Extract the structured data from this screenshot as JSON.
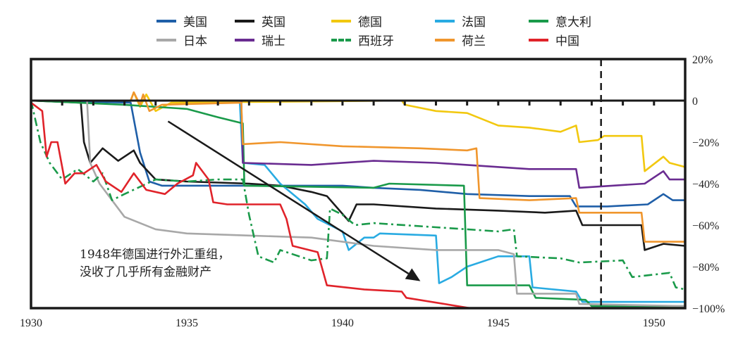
{
  "chart_data": {
    "type": "line",
    "title": "",
    "xlabel": "",
    "ylabel": "",
    "xlim": [
      1930,
      1951
    ],
    "ylim": [
      -100,
      20
    ],
    "x_ticks": [
      "1930",
      "1935",
      "1940",
      "1945",
      "1950"
    ],
    "x_tick_values": [
      1930,
      1935,
      1940,
      1945,
      1950
    ],
    "y_ticks": [
      "20%",
      "0",
      "−20%",
      "−40%",
      "−60%",
      "−80%",
      "−100%"
    ],
    "y_tick_values": [
      20,
      0,
      -20,
      -40,
      -60,
      -80,
      -100
    ],
    "y_axis_side": "right",
    "legend_placement": "top",
    "reference_line_year": 1948.3,
    "annotation": {
      "lines": [
        "1948年德国进行外汇重组，",
        "没收了几乎所有金融财产"
      ]
    },
    "arrow": {
      "from": [
        1934.4,
        -10
      ],
      "to": [
        1942.5,
        -87
      ]
    },
    "series": [
      {
        "name": "美国",
        "color": "#1f5fa8",
        "style": "solid",
        "points": [
          [
            1930,
            0
          ],
          [
            1933.2,
            -1
          ],
          [
            1933.5,
            -25
          ],
          [
            1933.8,
            -39
          ],
          [
            1934.2,
            -41
          ],
          [
            1940,
            -41
          ],
          [
            1941,
            -42
          ],
          [
            1942.5,
            -43
          ],
          [
            1944,
            -45
          ],
          [
            1946,
            -46
          ],
          [
            1947.3,
            -46
          ],
          [
            1947.5,
            -51
          ],
          [
            1948.5,
            -51
          ],
          [
            1949.8,
            -50
          ],
          [
            1950.3,
            -45
          ],
          [
            1950.6,
            -48
          ],
          [
            1951,
            -48
          ]
        ]
      },
      {
        "name": "英国",
        "color": "#1a1a1a",
        "style": "solid",
        "points": [
          [
            1930,
            0
          ],
          [
            1931.6,
            -1
          ],
          [
            1931.7,
            -20
          ],
          [
            1931.9,
            -30
          ],
          [
            1932.3,
            -23
          ],
          [
            1932.8,
            -29
          ],
          [
            1933.3,
            -24
          ],
          [
            1933.5,
            -30
          ],
          [
            1934,
            -38
          ],
          [
            1935,
            -39
          ],
          [
            1937,
            -40
          ],
          [
            1938,
            -41
          ],
          [
            1939,
            -44
          ],
          [
            1939.5,
            -46
          ],
          [
            1940.2,
            -58
          ],
          [
            1940.45,
            -50
          ],
          [
            1941,
            -50
          ],
          [
            1943,
            -52
          ],
          [
            1945,
            -53
          ],
          [
            1946.5,
            -54
          ],
          [
            1947.5,
            -53
          ],
          [
            1947.7,
            -60
          ],
          [
            1949.6,
            -60
          ],
          [
            1949.7,
            -72
          ],
          [
            1950.3,
            -69
          ],
          [
            1951,
            -70
          ]
        ]
      },
      {
        "name": "德国",
        "color": "#f2c80f",
        "style": "solid",
        "points": [
          [
            1930,
            0
          ],
          [
            1933.2,
            0
          ],
          [
            1933.3,
            4
          ],
          [
            1933.5,
            -3
          ],
          [
            1933.7,
            3
          ],
          [
            1934,
            -5
          ],
          [
            1934.5,
            -1
          ],
          [
            1941.9,
            0
          ],
          [
            1942,
            -2
          ],
          [
            1943,
            -5
          ],
          [
            1944,
            -6
          ],
          [
            1945,
            -12
          ],
          [
            1946,
            -13
          ],
          [
            1947,
            -15
          ],
          [
            1947.5,
            -12
          ],
          [
            1947.6,
            -20
          ],
          [
            1948.2,
            -19
          ],
          [
            1948.4,
            -17
          ],
          [
            1949.6,
            -17
          ],
          [
            1949.7,
            -34
          ],
          [
            1950.3,
            -27
          ],
          [
            1950.5,
            -30
          ],
          [
            1951,
            -32
          ]
        ]
      },
      {
        "name": "法国",
        "color": "#29abe2",
        "style": "solid",
        "points": [
          [
            1930,
            0
          ],
          [
            1936.7,
            0
          ],
          [
            1936.8,
            -30
          ],
          [
            1937.5,
            -31
          ],
          [
            1938,
            -40
          ],
          [
            1938.8,
            -50
          ],
          [
            1939.2,
            -57
          ],
          [
            1940,
            -63
          ],
          [
            1940.2,
            -72
          ],
          [
            1940.7,
            -66
          ],
          [
            1941,
            -66
          ],
          [
            1941.2,
            -64
          ],
          [
            1943,
            -65
          ],
          [
            1943.1,
            -88
          ],
          [
            1943.5,
            -85
          ],
          [
            1944,
            -80
          ],
          [
            1945,
            -75
          ],
          [
            1946,
            -75
          ],
          [
            1946.1,
            -90
          ],
          [
            1947.5,
            -92
          ],
          [
            1947.7,
            -97
          ],
          [
            1951,
            -97
          ]
        ]
      },
      {
        "name": "意大利",
        "color": "#1a9a4a",
        "style": "solid",
        "points": [
          [
            1930,
            0
          ],
          [
            1933,
            -2
          ],
          [
            1935,
            -4
          ],
          [
            1936,
            -8
          ],
          [
            1936.8,
            -11
          ],
          [
            1936.85,
            -41
          ],
          [
            1941,
            -42
          ],
          [
            1941.5,
            -40
          ],
          [
            1943.9,
            -41
          ],
          [
            1944,
            -89
          ],
          [
            1946,
            -89
          ],
          [
            1946.2,
            -95
          ],
          [
            1947.8,
            -96
          ],
          [
            1948,
            -99
          ],
          [
            1951,
            -99
          ]
        ]
      },
      {
        "name": "日本",
        "color": "#a8a8a8",
        "style": "solid",
        "points": [
          [
            1930,
            0
          ],
          [
            1931.8,
            0
          ],
          [
            1931.9,
            -30
          ],
          [
            1932.2,
            -40
          ],
          [
            1933,
            -56
          ],
          [
            1934,
            -62
          ],
          [
            1935,
            -64
          ],
          [
            1937,
            -65
          ],
          [
            1939,
            -66
          ],
          [
            1940,
            -68
          ],
          [
            1941,
            -70
          ],
          [
            1943,
            -72
          ],
          [
            1945,
            -72
          ],
          [
            1945.5,
            -74
          ],
          [
            1945.6,
            -93
          ],
          [
            1947.5,
            -93
          ],
          [
            1947.6,
            -98
          ],
          [
            1951,
            -99
          ]
        ]
      },
      {
        "name": "瑞士",
        "color": "#6a2c91",
        "style": "solid",
        "points": [
          [
            1930,
            0
          ],
          [
            1936.75,
            0
          ],
          [
            1936.8,
            -30
          ],
          [
            1939,
            -31
          ],
          [
            1941,
            -29
          ],
          [
            1943,
            -30
          ],
          [
            1944,
            -31
          ],
          [
            1946,
            -33
          ],
          [
            1947.5,
            -33
          ],
          [
            1947.6,
            -42
          ],
          [
            1949.7,
            -40
          ],
          [
            1950.3,
            -34
          ],
          [
            1950.5,
            -38
          ],
          [
            1951,
            -38
          ]
        ]
      },
      {
        "name": "西班牙",
        "color": "#1a9a4a",
        "style": "dashdot",
        "points": [
          [
            1930,
            0
          ],
          [
            1930.3,
            -20
          ],
          [
            1930.6,
            -30
          ],
          [
            1931,
            -38
          ],
          [
            1931.5,
            -33
          ],
          [
            1932,
            -39
          ],
          [
            1932.3,
            -35
          ],
          [
            1932.6,
            -48
          ],
          [
            1933,
            -45
          ],
          [
            1934,
            -38
          ],
          [
            1935,
            -39
          ],
          [
            1936,
            -38
          ],
          [
            1936.8,
            -38
          ],
          [
            1937,
            -55
          ],
          [
            1937.3,
            -75
          ],
          [
            1937.8,
            -78
          ],
          [
            1938,
            -72
          ],
          [
            1939,
            -77
          ],
          [
            1939.5,
            -76
          ],
          [
            1939.6,
            -52
          ],
          [
            1940,
            -55
          ],
          [
            1940.4,
            -60
          ],
          [
            1941,
            -59
          ],
          [
            1943,
            -61
          ],
          [
            1945,
            -63
          ],
          [
            1945.5,
            -62
          ],
          [
            1945.6,
            -75
          ],
          [
            1947,
            -76
          ],
          [
            1947.6,
            -78
          ],
          [
            1949,
            -77
          ],
          [
            1949.3,
            -85
          ],
          [
            1950.5,
            -83
          ],
          [
            1950.7,
            -90
          ],
          [
            1951,
            -91
          ]
        ]
      },
      {
        "name": "荷兰",
        "color": "#f0962d",
        "style": "solid",
        "points": [
          [
            1930,
            0
          ],
          [
            1933.2,
            0
          ],
          [
            1933.3,
            4
          ],
          [
            1933.5,
            -2
          ],
          [
            1933.6,
            3
          ],
          [
            1933.8,
            -5
          ],
          [
            1934.2,
            -2
          ],
          [
            1936.75,
            -1
          ],
          [
            1936.8,
            -21
          ],
          [
            1938,
            -20
          ],
          [
            1940,
            -22
          ],
          [
            1942.5,
            -23
          ],
          [
            1944,
            -24
          ],
          [
            1944.3,
            -23
          ],
          [
            1944.4,
            -47
          ],
          [
            1946,
            -48
          ],
          [
            1947.5,
            -47
          ],
          [
            1947.6,
            -54
          ],
          [
            1949.6,
            -54
          ],
          [
            1949.7,
            -68
          ],
          [
            1951,
            -68
          ]
        ]
      },
      {
        "name": "中国",
        "color": "#e0232a",
        "style": "solid",
        "points": [
          [
            1930,
            -1
          ],
          [
            1930.36,
            -5
          ],
          [
            1930.5,
            -27
          ],
          [
            1930.65,
            -20
          ],
          [
            1930.85,
            -20
          ],
          [
            1931.1,
            -40
          ],
          [
            1931.4,
            -35
          ],
          [
            1931.7,
            -35
          ],
          [
            1932.1,
            -31
          ],
          [
            1932.4,
            -39
          ],
          [
            1932.9,
            -44
          ],
          [
            1933.3,
            -35
          ],
          [
            1933.7,
            -43
          ],
          [
            1934.3,
            -45
          ],
          [
            1934.7,
            -40
          ],
          [
            1935.2,
            -36
          ],
          [
            1935.3,
            -30
          ],
          [
            1935.7,
            -38
          ],
          [
            1935.85,
            -49
          ],
          [
            1936.3,
            -50
          ],
          [
            1938,
            -50
          ],
          [
            1938.2,
            -57
          ],
          [
            1938.4,
            -70
          ],
          [
            1939.2,
            -73
          ],
          [
            1939.5,
            -89
          ],
          [
            1940.7,
            -91
          ],
          [
            1941.9,
            -92
          ],
          [
            1942.05,
            -95
          ],
          [
            1944.1,
            -100
          ],
          [
            1951,
            -100
          ]
        ]
      }
    ]
  }
}
